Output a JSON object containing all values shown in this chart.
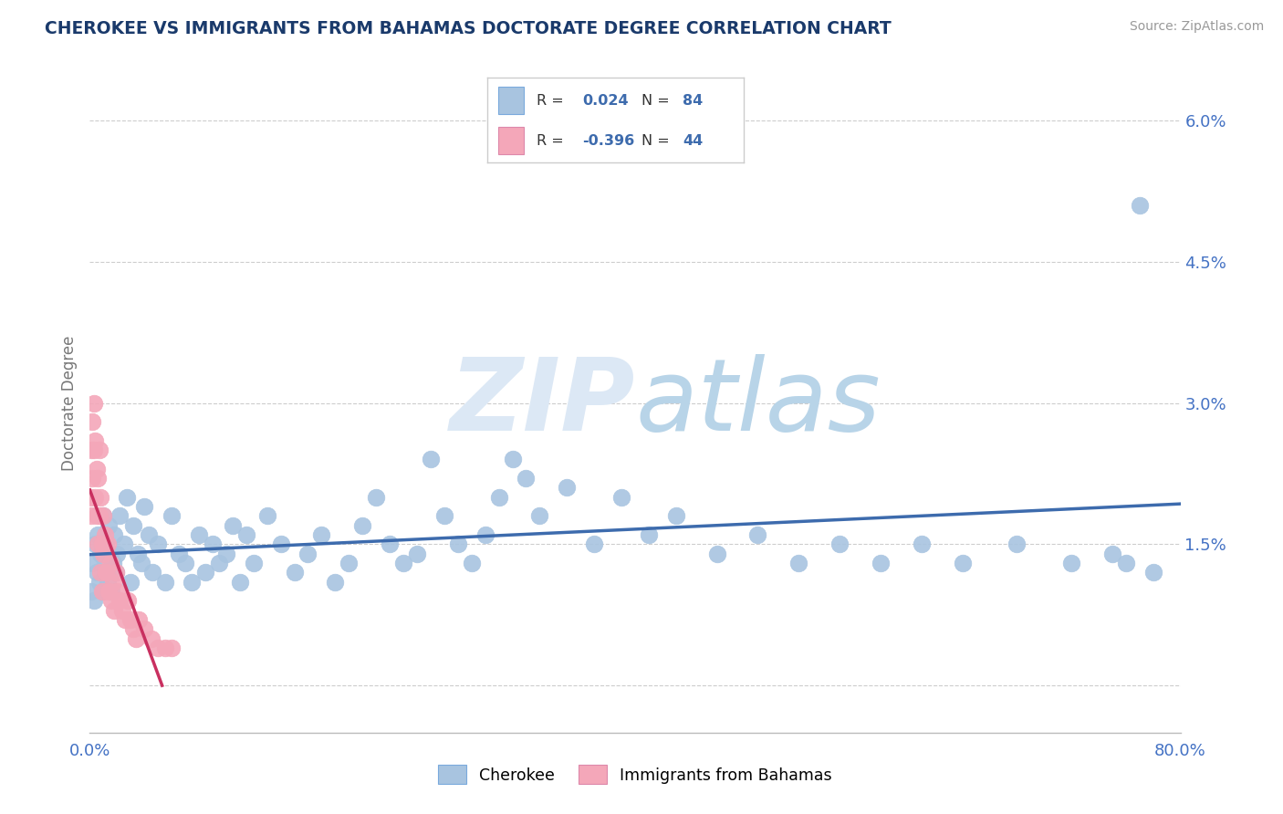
{
  "title": "CHEROKEE VS IMMIGRANTS FROM BAHAMAS DOCTORATE DEGREE CORRELATION CHART",
  "source": "Source: ZipAtlas.com",
  "ylabel": "Doctorate Degree",
  "xmin": 0.0,
  "xmax": 0.8,
  "ymin": -0.005,
  "ymax": 0.065,
  "yticks": [
    0.0,
    0.015,
    0.03,
    0.045,
    0.06
  ],
  "ytick_labels": [
    "",
    "1.5%",
    "3.0%",
    "4.5%",
    "6.0%"
  ],
  "cherokee_color": "#a8c4e0",
  "bahamas_color": "#f4a7b9",
  "trendline_cherokee_color": "#3d6bad",
  "trendline_bahamas_color": "#c93060",
  "background_color": "#ffffff",
  "grid_color": "#c8c8c8",
  "watermark_color": "#dce8f5",
  "cherokee_x": [
    0.001,
    0.002,
    0.003,
    0.004,
    0.005,
    0.006,
    0.007,
    0.008,
    0.009,
    0.01,
    0.011,
    0.012,
    0.013,
    0.014,
    0.015,
    0.016,
    0.017,
    0.018,
    0.019,
    0.02,
    0.022,
    0.025,
    0.027,
    0.03,
    0.032,
    0.035,
    0.038,
    0.04,
    0.043,
    0.046,
    0.05,
    0.055,
    0.06,
    0.065,
    0.07,
    0.075,
    0.08,
    0.085,
    0.09,
    0.095,
    0.1,
    0.105,
    0.11,
    0.115,
    0.12,
    0.13,
    0.14,
    0.15,
    0.16,
    0.17,
    0.18,
    0.19,
    0.2,
    0.21,
    0.22,
    0.23,
    0.24,
    0.25,
    0.26,
    0.27,
    0.28,
    0.29,
    0.3,
    0.31,
    0.32,
    0.33,
    0.35,
    0.37,
    0.39,
    0.41,
    0.43,
    0.46,
    0.49,
    0.52,
    0.55,
    0.58,
    0.61,
    0.64,
    0.68,
    0.72,
    0.75,
    0.76,
    0.77,
    0.78
  ],
  "cherokee_y": [
    0.01,
    0.013,
    0.009,
    0.015,
    0.012,
    0.016,
    0.011,
    0.014,
    0.01,
    0.018,
    0.013,
    0.015,
    0.011,
    0.017,
    0.014,
    0.01,
    0.013,
    0.016,
    0.012,
    0.014,
    0.018,
    0.015,
    0.02,
    0.011,
    0.017,
    0.014,
    0.013,
    0.019,
    0.016,
    0.012,
    0.015,
    0.011,
    0.018,
    0.014,
    0.013,
    0.011,
    0.016,
    0.012,
    0.015,
    0.013,
    0.014,
    0.017,
    0.011,
    0.016,
    0.013,
    0.018,
    0.015,
    0.012,
    0.014,
    0.016,
    0.011,
    0.013,
    0.017,
    0.02,
    0.015,
    0.013,
    0.014,
    0.024,
    0.018,
    0.015,
    0.013,
    0.016,
    0.02,
    0.024,
    0.022,
    0.018,
    0.021,
    0.015,
    0.02,
    0.016,
    0.018,
    0.014,
    0.016,
    0.013,
    0.015,
    0.013,
    0.015,
    0.013,
    0.015,
    0.013,
    0.014,
    0.013,
    0.051,
    0.012
  ],
  "bahamas_x": [
    0.0005,
    0.001,
    0.001,
    0.002,
    0.002,
    0.003,
    0.003,
    0.004,
    0.004,
    0.005,
    0.005,
    0.006,
    0.006,
    0.007,
    0.007,
    0.008,
    0.008,
    0.009,
    0.009,
    0.01,
    0.01,
    0.011,
    0.012,
    0.013,
    0.014,
    0.015,
    0.016,
    0.017,
    0.018,
    0.019,
    0.02,
    0.022,
    0.024,
    0.026,
    0.028,
    0.03,
    0.032,
    0.034,
    0.036,
    0.04,
    0.045,
    0.05,
    0.055,
    0.06
  ],
  "bahamas_y": [
    0.02,
    0.025,
    0.018,
    0.028,
    0.022,
    0.03,
    0.025,
    0.02,
    0.026,
    0.018,
    0.023,
    0.015,
    0.022,
    0.018,
    0.025,
    0.012,
    0.02,
    0.015,
    0.01,
    0.018,
    0.014,
    0.016,
    0.012,
    0.015,
    0.01,
    0.013,
    0.009,
    0.011,
    0.008,
    0.012,
    0.01,
    0.009,
    0.008,
    0.007,
    0.009,
    0.007,
    0.006,
    0.005,
    0.007,
    0.006,
    0.005,
    0.004,
    0.004,
    0.004
  ]
}
